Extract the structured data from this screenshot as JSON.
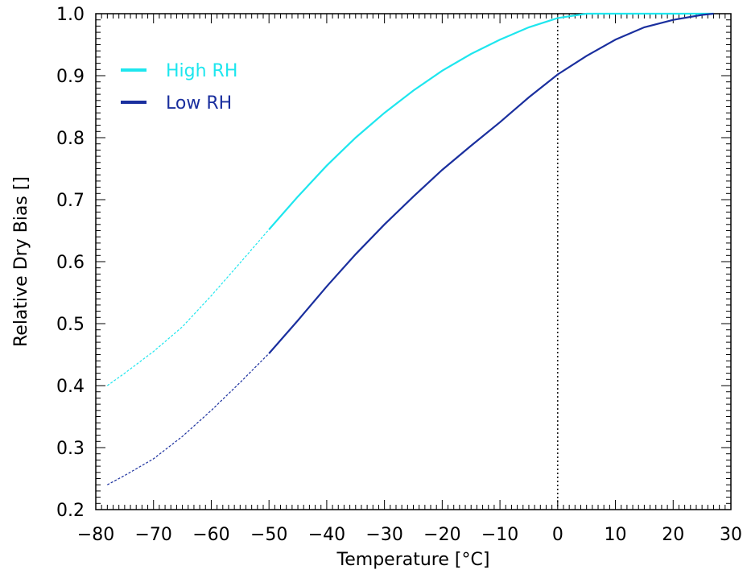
{
  "chart_data": {
    "type": "line",
    "xlabel": "Temperature [°C]",
    "ylabel": "Relative Dry Bias []",
    "xlim": [
      -80,
      30
    ],
    "ylim": [
      0.2,
      1.0
    ],
    "xticks": [
      -80,
      -70,
      -60,
      -50,
      -40,
      -30,
      -20,
      -10,
      0,
      10,
      20,
      30
    ],
    "yticks": [
      0.2,
      0.3,
      0.4,
      0.5,
      0.6,
      0.7,
      0.8,
      0.9,
      1.0
    ],
    "xtick_labels": [
      "−80",
      "−70",
      "−60",
      "−50",
      "−40",
      "−30",
      "−20",
      "−10",
      "0",
      "10",
      "20",
      "30"
    ],
    "ytick_labels": [
      "0.2",
      "0.3",
      "0.4",
      "0.5",
      "0.6",
      "0.7",
      "0.8",
      "0.9",
      "1.0"
    ],
    "vertical_reference_line_x": 0,
    "grid": false,
    "legend_position": "top-left",
    "series": [
      {
        "name": "High RH",
        "color": "#1ee6ee",
        "dashed_below_x": -50,
        "x": [
          -78,
          -75,
          -70,
          -65,
          -60,
          -55,
          -50,
          -45,
          -40,
          -35,
          -30,
          -25,
          -20,
          -15,
          -10,
          -5,
          0,
          5,
          10,
          15,
          20,
          25,
          27
        ],
        "y": [
          0.4,
          0.42,
          0.455,
          0.495,
          0.545,
          0.598,
          0.652,
          0.705,
          0.755,
          0.8,
          0.84,
          0.876,
          0.908,
          0.935,
          0.958,
          0.978,
          0.993,
          1.0,
          1.0,
          1.0,
          1.0,
          1.0,
          1.0
        ]
      },
      {
        "name": "Low RH",
        "color": "#1a2f9e",
        "dashed_below_x": -50,
        "x": [
          -78,
          -75,
          -70,
          -65,
          -60,
          -55,
          -50,
          -45,
          -40,
          -35,
          -30,
          -25,
          -20,
          -15,
          -10,
          -5,
          0,
          5,
          10,
          15,
          20,
          25,
          27
        ],
        "y": [
          0.24,
          0.255,
          0.282,
          0.318,
          0.36,
          0.405,
          0.452,
          0.505,
          0.56,
          0.612,
          0.66,
          0.705,
          0.748,
          0.787,
          0.825,
          0.865,
          0.902,
          0.932,
          0.958,
          0.978,
          0.99,
          0.998,
          1.0
        ]
      }
    ]
  }
}
